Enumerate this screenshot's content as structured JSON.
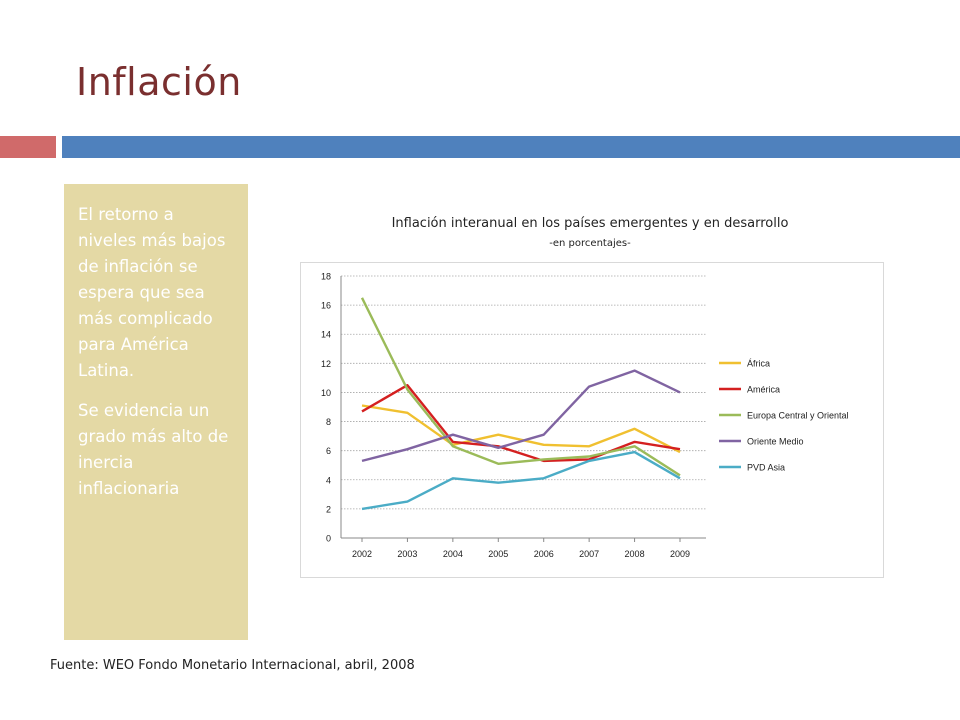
{
  "slide": {
    "title": "Inflación",
    "sidebar_paragraphs": [
      "El retorno a niveles más bajos de inflación se espera que sea más complicado para América Latina.",
      "Se evidencia un grado más alto de inercia inflacionaria"
    ],
    "source": "Fuente: WEO Fondo Monetario Internacional, abril, 2008",
    "colors": {
      "title": "#7a2f2f",
      "bar_red": "#d06a6a",
      "bar_blue": "#4f81bd",
      "sidebar": "#e4d9a5"
    }
  },
  "chart_data": {
    "type": "line",
    "title": "Inflación interanual en los países emergentes y en desarrollo",
    "subtitle": "-en porcentajes-",
    "x": [
      "2002",
      "2003",
      "2004",
      "2005",
      "2006",
      "2007",
      "2008",
      "2009"
    ],
    "ylim": [
      0,
      18
    ],
    "yticks": [
      0,
      2,
      4,
      6,
      8,
      10,
      12,
      14,
      16,
      18
    ],
    "grid": true,
    "legend_position": "right",
    "series": [
      {
        "name": "África",
        "color": "#f0c030",
        "values": [
          9.1,
          8.6,
          6.4,
          7.1,
          6.4,
          6.3,
          7.5,
          5.9
        ]
      },
      {
        "name": "América",
        "color": "#d42020",
        "values": [
          8.7,
          10.5,
          6.6,
          6.3,
          5.3,
          5.4,
          6.6,
          6.1
        ]
      },
      {
        "name": "Europa Central y Oriental",
        "color": "#9bbb59",
        "values": [
          16.5,
          10.2,
          6.3,
          5.1,
          5.4,
          5.6,
          6.3,
          4.3
        ]
      },
      {
        "name": "Oriente Medio",
        "color": "#8064a2",
        "values": [
          5.3,
          6.1,
          7.1,
          6.2,
          7.1,
          10.4,
          11.5,
          10.0
        ]
      },
      {
        "name": "PVD Asia",
        "color": "#4bacc6",
        "values": [
          2.0,
          2.5,
          4.1,
          3.8,
          4.1,
          5.3,
          5.9,
          4.1
        ]
      }
    ]
  }
}
